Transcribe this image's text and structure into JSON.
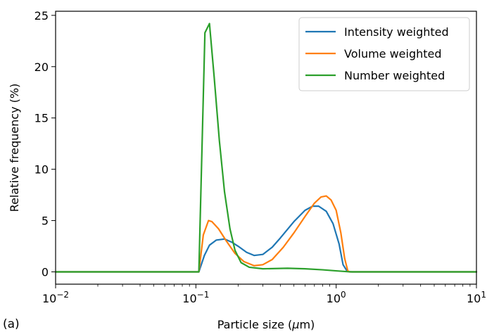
{
  "panel_label": "(a)",
  "chart_data": {
    "type": "line",
    "title": "",
    "xlabel_prefix": "Particle size (",
    "xlabel_unit_symbol": "μ",
    "xlabel_suffix": "m)",
    "ylabel": "Relative frequency (%)",
    "xscale": "log",
    "xlim": [
      0.01,
      10
    ],
    "ylim": [
      -1.2,
      25.4
    ],
    "grid": false,
    "legend_position": "top-right",
    "x_ticks": [
      {
        "value": 0.01,
        "base": "10",
        "exp": "−2"
      },
      {
        "value": 0.1,
        "base": "10",
        "exp": "−1"
      },
      {
        "value": 1,
        "base": "10",
        "exp": "0"
      },
      {
        "value": 10,
        "base": "10",
        "exp": "1"
      }
    ],
    "y_ticks": [
      0,
      5,
      10,
      15,
      20,
      25
    ],
    "series": [
      {
        "name": "Intensity weighted",
        "color": "#1f77b4",
        "points": [
          [
            0.01,
            0
          ],
          [
            0.105,
            0
          ],
          [
            0.115,
            1.6
          ],
          [
            0.125,
            2.6
          ],
          [
            0.14,
            3.1
          ],
          [
            0.16,
            3.2
          ],
          [
            0.18,
            2.9
          ],
          [
            0.2,
            2.5
          ],
          [
            0.23,
            1.9
          ],
          [
            0.26,
            1.6
          ],
          [
            0.3,
            1.7
          ],
          [
            0.35,
            2.4
          ],
          [
            0.4,
            3.3
          ],
          [
            0.5,
            4.9
          ],
          [
            0.6,
            6.0
          ],
          [
            0.68,
            6.4
          ],
          [
            0.75,
            6.4
          ],
          [
            0.85,
            5.9
          ],
          [
            0.95,
            4.7
          ],
          [
            1.05,
            2.7
          ],
          [
            1.12,
            0.7
          ],
          [
            1.2,
            0.05
          ],
          [
            1.25,
            0
          ],
          [
            10,
            0
          ]
        ]
      },
      {
        "name": "Volume weighted",
        "color": "#ff7f0e",
        "points": [
          [
            0.01,
            0
          ],
          [
            0.105,
            0
          ],
          [
            0.113,
            3.6
          ],
          [
            0.123,
            5.0
          ],
          [
            0.13,
            4.9
          ],
          [
            0.145,
            4.2
          ],
          [
            0.165,
            3.0
          ],
          [
            0.19,
            1.8
          ],
          [
            0.22,
            1.0
          ],
          [
            0.26,
            0.6
          ],
          [
            0.3,
            0.7
          ],
          [
            0.35,
            1.2
          ],
          [
            0.42,
            2.4
          ],
          [
            0.5,
            3.8
          ],
          [
            0.6,
            5.4
          ],
          [
            0.7,
            6.7
          ],
          [
            0.78,
            7.3
          ],
          [
            0.85,
            7.4
          ],
          [
            0.92,
            7.0
          ],
          [
            1.0,
            6.0
          ],
          [
            1.08,
            3.8
          ],
          [
            1.15,
            1.3
          ],
          [
            1.21,
            0.1
          ],
          [
            1.25,
            0
          ],
          [
            10,
            0
          ]
        ]
      },
      {
        "name": "Number weighted",
        "color": "#2ca02c",
        "points": [
          [
            0.01,
            0
          ],
          [
            0.105,
            0
          ],
          [
            0.116,
            23.3
          ],
          [
            0.125,
            24.2
          ],
          [
            0.135,
            19.0
          ],
          [
            0.147,
            12.8
          ],
          [
            0.16,
            7.8
          ],
          [
            0.175,
            4.2
          ],
          [
            0.19,
            2.1
          ],
          [
            0.21,
            0.9
          ],
          [
            0.24,
            0.45
          ],
          [
            0.3,
            0.3
          ],
          [
            0.45,
            0.35
          ],
          [
            0.6,
            0.3
          ],
          [
            0.8,
            0.2
          ],
          [
            1.0,
            0.1
          ],
          [
            1.2,
            0.02
          ],
          [
            1.3,
            0
          ],
          [
            10,
            0
          ]
        ]
      }
    ]
  }
}
